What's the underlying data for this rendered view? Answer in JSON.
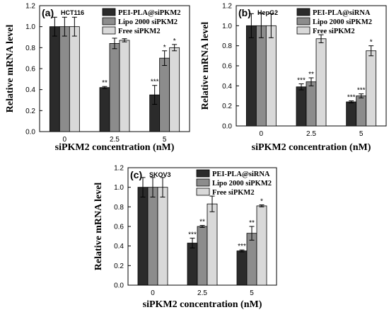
{
  "chart_data": [
    {
      "panel_label": "(a)",
      "cell_line": "HCT116",
      "type": "bar",
      "xlabel": "siPKM2 concentration (nM)",
      "ylabel": "Relative mRNA level",
      "categories": [
        "0",
        "2.5",
        "5"
      ],
      "ylim": [
        0,
        1.2
      ],
      "yticks": [
        "0.0",
        "0.2",
        "0.4",
        "0.6",
        "0.8",
        "1.0",
        "1.2"
      ],
      "legend_position": "top-right",
      "series": [
        {
          "name": "PEI-PLA@siPKM2",
          "color": "#2b2b2b",
          "values": [
            1.0,
            0.42,
            0.35
          ],
          "errors": [
            0.09,
            0.01,
            0.09
          ],
          "significance": [
            "",
            "**",
            "***"
          ]
        },
        {
          "name": "Lipo 2000 siPKM2",
          "color": "#8c8c8c",
          "values": [
            1.0,
            0.84,
            0.7
          ],
          "errors": [
            0.09,
            0.05,
            0.07
          ],
          "significance": [
            "",
            "",
            "*"
          ]
        },
        {
          "name": "Free siPKM2",
          "color": "#d9d9d9",
          "values": [
            1.0,
            0.87,
            0.8
          ],
          "errors": [
            0.09,
            0.015,
            0.03
          ],
          "significance": [
            "",
            "",
            "*"
          ]
        }
      ]
    },
    {
      "panel_label": "(b)",
      "cell_line": "HepG2",
      "type": "bar",
      "xlabel": "siPKM2 concentration (nM)",
      "ylabel": "Relative mRNA level",
      "categories": [
        "0",
        "2.5",
        "5"
      ],
      "ylim": [
        0,
        1.2
      ],
      "yticks": [
        "0.0",
        "0.2",
        "0.4",
        "0.6",
        "0.8",
        "1.0",
        "1.2"
      ],
      "legend_position": "top-right",
      "series": [
        {
          "name": "PEI-PLA@siRNA",
          "color": "#2b2b2b",
          "values": [
            1.0,
            0.39,
            0.24
          ],
          "errors": [
            0.12,
            0.03,
            0.01
          ],
          "significance": [
            "",
            "***",
            "***"
          ]
        },
        {
          "name": "Lipo 2000 siPKM2",
          "color": "#8c8c8c",
          "values": [
            1.0,
            0.44,
            0.3
          ],
          "errors": [
            0.12,
            0.04,
            0.02
          ],
          "significance": [
            "",
            "**",
            "***"
          ]
        },
        {
          "name": "Free siPKM2",
          "color": "#d9d9d9",
          "values": [
            1.0,
            0.87,
            0.75
          ],
          "errors": [
            0.12,
            0.04,
            0.05
          ],
          "significance": [
            "",
            "",
            "*"
          ]
        }
      ]
    },
    {
      "panel_label": "(c)",
      "cell_line": "SKOV3",
      "type": "bar",
      "xlabel": "siPKM2 concentration (nM)",
      "ylabel": "Relative mRNA level",
      "categories": [
        "0",
        "2.5",
        "5"
      ],
      "ylim": [
        0,
        1.2
      ],
      "yticks": [
        "0.0",
        "0.2",
        "0.4",
        "0.6",
        "0.8",
        "1.0",
        "1.2"
      ],
      "legend_position": "top-right",
      "series": [
        {
          "name": "PEI-PLA@siRNA",
          "color": "#2b2b2b",
          "values": [
            1.0,
            0.43,
            0.35
          ],
          "errors": [
            0.1,
            0.05,
            0.01
          ],
          "significance": [
            "",
            "***",
            "***"
          ]
        },
        {
          "name": "Lipo 2000 siPKM2",
          "color": "#8c8c8c",
          "values": [
            1.0,
            0.6,
            0.53
          ],
          "errors": [
            0.1,
            0.01,
            0.07
          ],
          "significance": [
            "",
            "**",
            "**"
          ]
        },
        {
          "name": "Free siPKM2",
          "color": "#d9d9d9",
          "values": [
            1.0,
            0.83,
            0.81
          ],
          "errors": [
            0.1,
            0.08,
            0.01
          ],
          "significance": [
            "",
            "",
            "*"
          ]
        }
      ]
    }
  ]
}
